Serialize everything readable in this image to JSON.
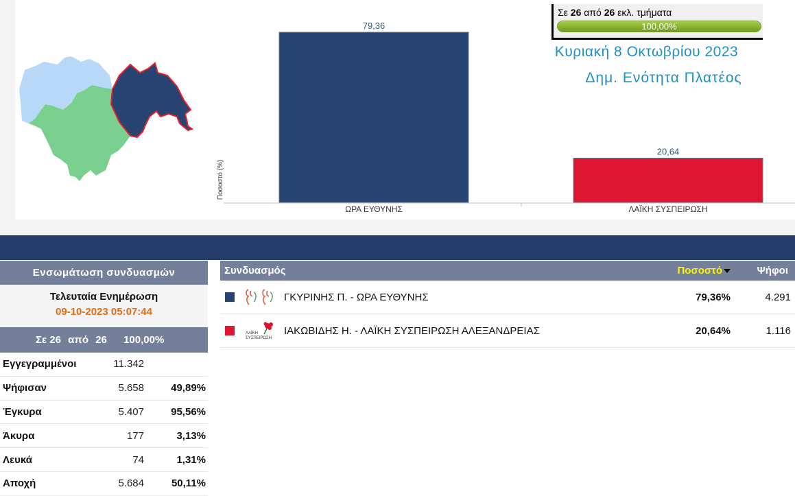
{
  "progress": {
    "prefix": "Σε",
    "counted": "26",
    "middle": "από",
    "total": "26",
    "suffix": "εκλ. τμήματα",
    "percent_label": "100,00%",
    "fraction": 1.0
  },
  "header": {
    "date": "Κυριακή 8 Οκτωβρίου 2023",
    "area": "Δημ. Ενότητα Πλατέος"
  },
  "chart_data": {
    "type": "bar",
    "categories": [
      "ΩΡΑ ΕΥΘΥΝΗΣ",
      "ΛΑΪΚΗ ΣΥΣΠΕΙΡΩΣΗ"
    ],
    "values": [
      79.36,
      20.64
    ],
    "value_labels": [
      "79,36",
      "20,64"
    ],
    "colors": [
      "#284472",
      "#dc1530"
    ],
    "ylabel": "Ποσοστό (%)",
    "ylim": [
      0,
      80
    ],
    "grid": false
  },
  "left_panel": {
    "title": "Ενσωμάτωση συνδυασμών",
    "update_label": "Τελευταία Ενημέρωση",
    "update_time": "09-10-2023 05:07:44",
    "summary": {
      "prefix": "Σε 26",
      "middle": "από",
      "total": "26",
      "percent": "100,00%"
    },
    "stats": [
      {
        "label": "Εγγεγραμμένοι",
        "value": "11.342",
        "percent": ""
      },
      {
        "label": "Ψήφισαν",
        "value": "5.658",
        "percent": "49,89%"
      },
      {
        "label": "Έγκυρα",
        "value": "5.407",
        "percent": "95,56%"
      },
      {
        "label": "Άκυρα",
        "value": "177",
        "percent": "3,13%"
      },
      {
        "label": "Λευκά",
        "value": "74",
        "percent": "1,31%"
      },
      {
        "label": "Αποχή",
        "value": "5.684",
        "percent": "50,11%"
      }
    ]
  },
  "results": {
    "col_party": "Συνδυασμός",
    "col_percent": "Ποσοστό",
    "col_votes": "Ψήφοι",
    "rows": [
      {
        "name": "ΓΚΥΡΙΝΗΣ Π. - ΩΡΑ ΕΥΘΥΝΗΣ",
        "percent": "79,36%",
        "votes": "4.291",
        "color": "#284472"
      },
      {
        "name": "ΙΑΚΩΒΙΔΗΣ Η. - ΛΑΪΚΗ ΣΥΣΠΕΙΡΩΣΗ ΑΛΕΞΑΝΔΡΕΙΑΣ",
        "percent": "20,64%",
        "votes": "1.116",
        "color": "#dc1530",
        "logo_text": [
          "ΛΑΪΚΗ",
          "ΣΥΣΠΕΙΡΩΣΗ"
        ]
      }
    ]
  },
  "map": {
    "colors": {
      "selected": "#284472",
      "selected_border": "#e8202a",
      "region_green": "#79d08e",
      "region_blue": "#b8d8f8"
    }
  }
}
